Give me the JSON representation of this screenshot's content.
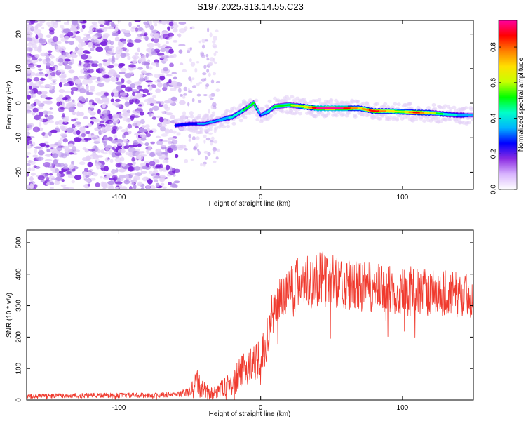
{
  "title": "S197.2025.313.14.55.C23",
  "colors": {
    "snr_line": "#f03a2e",
    "noise_dot_light": "#e3d0f7",
    "noise_dot_mid": "#b995ec",
    "noise_dot_dark": "#7a22dc"
  },
  "colorbar": {
    "label": "Normalized spectral amplitude",
    "range": [
      0.0,
      0.95
    ],
    "ticks": [
      {
        "value": 0.0,
        "label": "0.0"
      },
      {
        "value": 0.2,
        "label": "0.2"
      },
      {
        "value": 0.4,
        "label": "0.4"
      },
      {
        "value": 0.6,
        "label": "0.6"
      },
      {
        "value": 0.8,
        "label": "0.8"
      }
    ],
    "colors": [
      "#ffffff",
      "#d8b4fe",
      "#8b2be2",
      "#0000ff",
      "#00b4ff",
      "#00ffc8",
      "#00ff00",
      "#c8ff00",
      "#ffe000",
      "#ff8000",
      "#ff0000",
      "#ff00a0"
    ]
  },
  "chart_data": [
    {
      "type": "heatmap",
      "xlabel": "Height of straight line (km)",
      "ylabel": "Frequency (Hz)",
      "xlim": [
        -165,
        150
      ],
      "ylim": [
        -25,
        24
      ],
      "xticks": [
        {
          "value": -100,
          "label": "-100"
        },
        {
          "value": 0,
          "label": "0"
        },
        {
          "value": 100,
          "label": "100"
        }
      ],
      "yticks": [
        {
          "value": -20,
          "label": "-20"
        },
        {
          "value": -10,
          "label": "-10"
        },
        {
          "value": 0,
          "label": "0"
        },
        {
          "value": 10,
          "label": "10"
        },
        {
          "value": 20,
          "label": "20"
        }
      ],
      "ridge": {
        "x": [
          -60,
          -50,
          -40,
          -30,
          -20,
          -10,
          -5,
          0,
          5,
          10,
          20,
          30,
          40,
          50,
          60,
          70,
          80,
          90,
          100,
          110,
          120,
          130,
          140,
          150
        ],
        "frequency": [
          -6.5,
          -6,
          -6,
          -5,
          -4,
          -1.5,
          0,
          -3.5,
          -2.5,
          -1,
          -0.5,
          -1,
          -1.5,
          -1.5,
          -1.5,
          -1.5,
          -2.3,
          -2.3,
          -2.5,
          -2.7,
          -2.8,
          -3.2,
          -3.5,
          -3.5
        ],
        "amplitude": [
          0.3,
          0.28,
          0.32,
          0.35,
          0.4,
          0.5,
          0.55,
          0.3,
          0.4,
          0.5,
          0.55,
          0.65,
          0.92,
          0.95,
          0.9,
          0.7,
          0.88,
          0.7,
          0.62,
          0.88,
          0.62,
          0.45,
          0.38,
          0.35
        ]
      }
    },
    {
      "type": "line",
      "xlabel": "Height of straight line (km)",
      "ylabel": "SNR (10 * v/v)",
      "xlim": [
        -165,
        150
      ],
      "ylim": [
        0,
        540
      ],
      "xticks": [
        {
          "value": -100,
          "label": "-100"
        },
        {
          "value": 0,
          "label": "0"
        },
        {
          "value": 100,
          "label": "100"
        }
      ],
      "yticks": [
        {
          "value": 0,
          "label": "0"
        },
        {
          "value": 100,
          "label": "100"
        },
        {
          "value": 200,
          "label": "200"
        },
        {
          "value": 300,
          "label": "300"
        },
        {
          "value": 400,
          "label": "400"
        },
        {
          "value": 500,
          "label": "500"
        }
      ],
      "envelope": {
        "x": [
          -165,
          -120,
          -80,
          -60,
          -50,
          -45,
          -42,
          -35,
          -25,
          -15,
          -8,
          0,
          5,
          8,
          12,
          18,
          25,
          35,
          40,
          50,
          70,
          90,
          110,
          130,
          150
        ],
        "base": [
          12,
          14,
          15,
          17,
          25,
          60,
          35,
          20,
          40,
          80,
          115,
          130,
          200,
          270,
          310,
          350,
          370,
          380,
          385,
          380,
          360,
          350,
          345,
          340,
          330
        ],
        "spread": [
          8,
          8,
          8,
          8,
          15,
          50,
          30,
          20,
          30,
          50,
          60,
          60,
          70,
          70,
          75,
          80,
          85,
          90,
          90,
          85,
          80,
          80,
          80,
          75,
          70
        ]
      }
    }
  ]
}
